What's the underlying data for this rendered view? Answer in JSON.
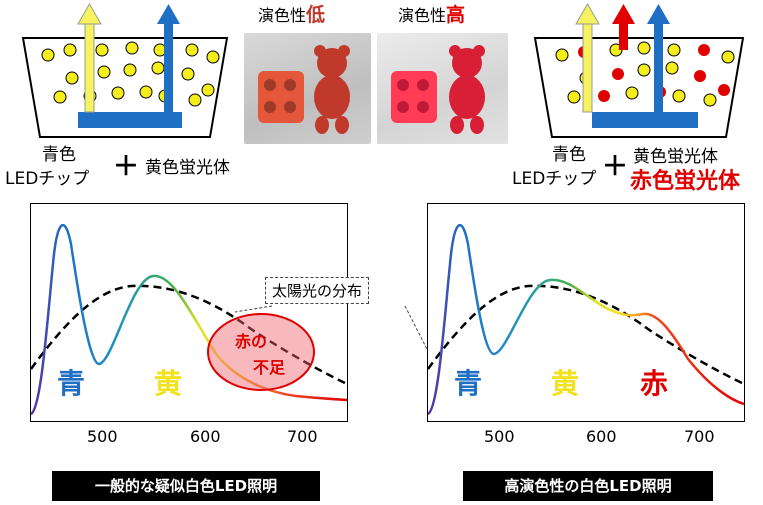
{
  "photos": {
    "low": {
      "label_prefix": "演色性",
      "label_emph": "低"
    },
    "high": {
      "label_prefix": "演色性",
      "label_emph": "高"
    }
  },
  "left_setup": {
    "chip_label_1": "青色",
    "chip_label_2": "LEDチップ",
    "plus": "＋",
    "phosphor_label": "黄色蛍光体"
  },
  "right_setup": {
    "chip_label_1": "青色",
    "chip_label_2": "LEDチップ",
    "plus": "＋",
    "phosphor_label": "黄色蛍光体",
    "red_phosphor_label": "赤色蛍光体"
  },
  "callout": {
    "sunlight": "太陽光の分布"
  },
  "left_chart": {
    "blue_label": "青",
    "yellow_label": "黄",
    "deficit_label_1": "赤の",
    "deficit_label_2": "不足",
    "ticks": [
      "500",
      "600",
      "700"
    ],
    "banner": "一般的な疑似白色LED照明"
  },
  "right_chart": {
    "blue_label": "青",
    "yellow_label": "黄",
    "red_label": "赤",
    "ticks": [
      "500",
      "600",
      "700"
    ],
    "banner": "高演色性の白色LED照明"
  },
  "colors": {
    "blue_chip": "#1f6fc4",
    "yellow_dot": "#f6ee1a",
    "red": "#e00000",
    "yellow_arrow": "#f7f35e"
  }
}
